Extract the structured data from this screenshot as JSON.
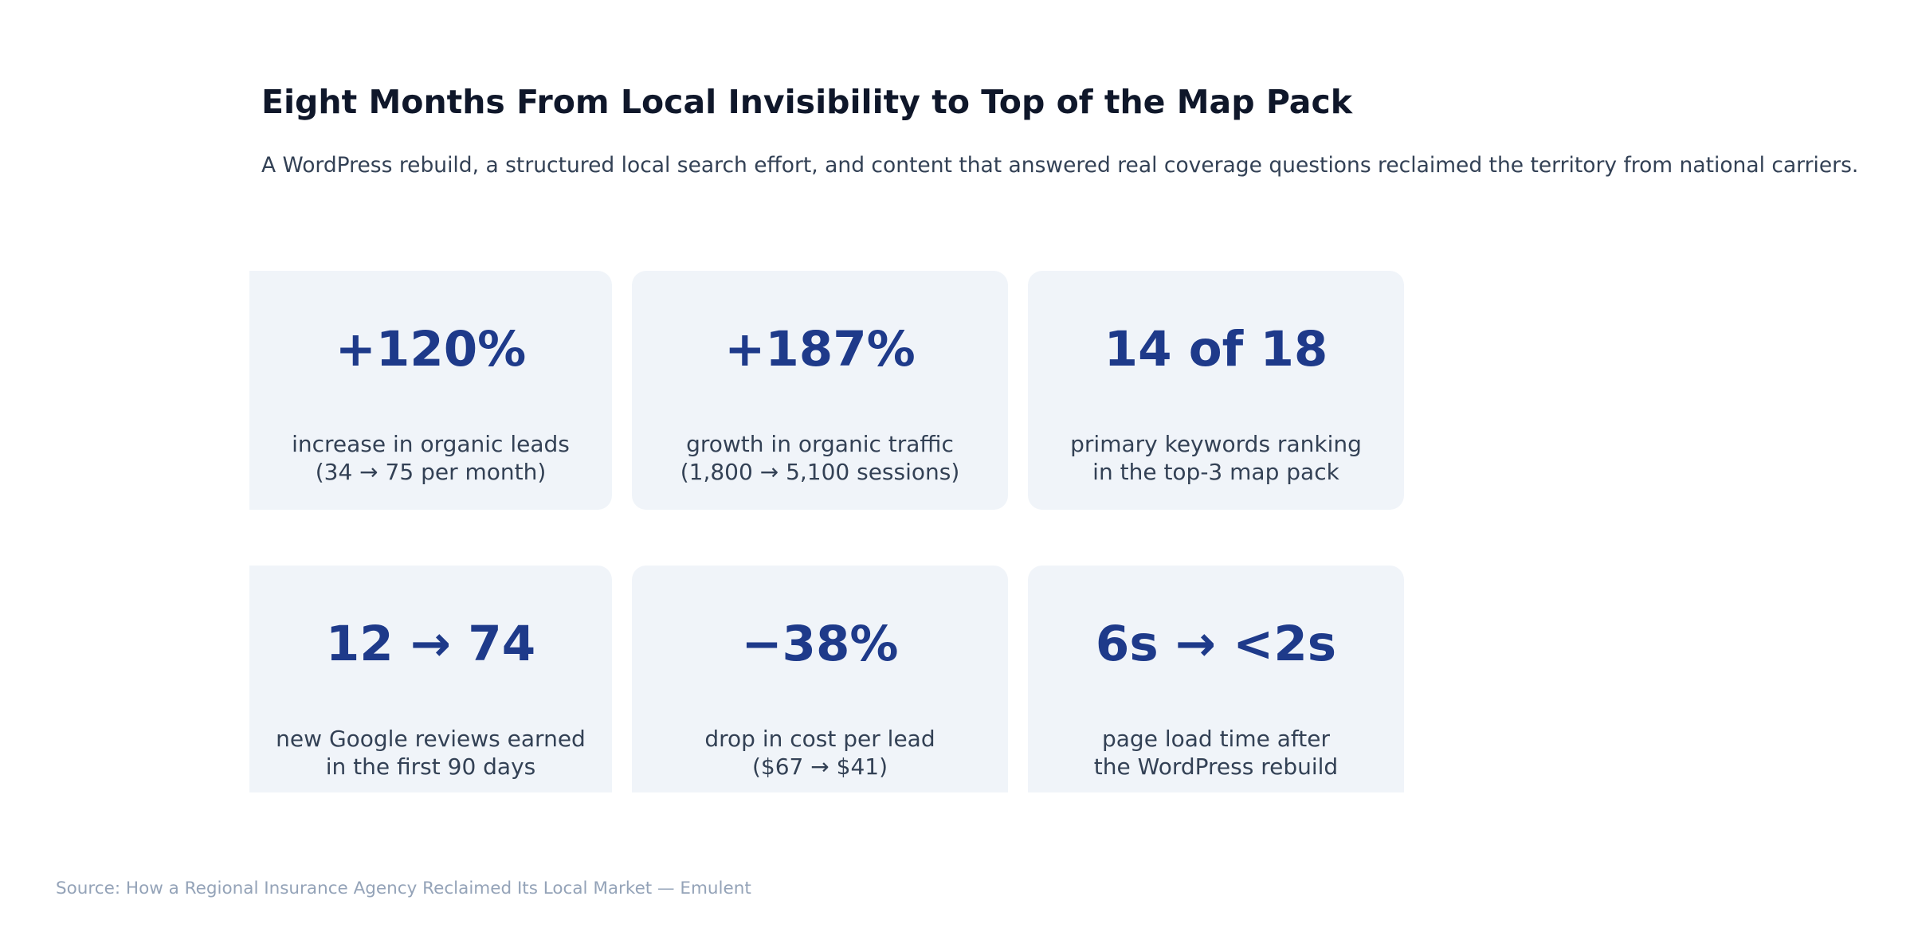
{
  "header": {
    "title": "Eight Months From Local Invisibility to Top of the Map Pack",
    "subtitle": "A WordPress rebuild, a structured local search effort, and content that answered real coverage questions reclaimed the territory from national carriers."
  },
  "footer": {
    "source": "Source: How a Regional Insurance Agency Reclaimed Its Local Market — Emulent"
  },
  "colors": {
    "card_bg": "#f0f4f9",
    "value": "#1e3a8a",
    "text": "#334155",
    "title": "#0f172a",
    "source": "#94a3b8"
  },
  "chart_data": {
    "type": "table",
    "title": "Eight Months From Local Invisibility to Top of the Map Pack",
    "subtitle": "A WordPress rebuild, a structured local search effort, and content that answered real coverage questions reclaimed the territory from national carriers.",
    "metrics": [
      {
        "value": "+120%",
        "line1": "increase in organic leads",
        "line2": "(34 → 75 per month)"
      },
      {
        "value": "+187%",
        "line1": "growth in organic traffic",
        "line2": "(1,800 → 5,100 sessions)"
      },
      {
        "value": "14 of 18",
        "line1": "primary keywords ranking",
        "line2": "in the top-3 map pack"
      },
      {
        "value": "12 → 74",
        "line1": "new Google reviews earned",
        "line2": "in the first 90 days"
      },
      {
        "value": "−38%",
        "line1": "drop in cost per lead",
        "line2": "($67 → $41)"
      },
      {
        "value": "6s → <2s",
        "line1": "page load time after",
        "line2": "the WordPress rebuild"
      }
    ]
  }
}
